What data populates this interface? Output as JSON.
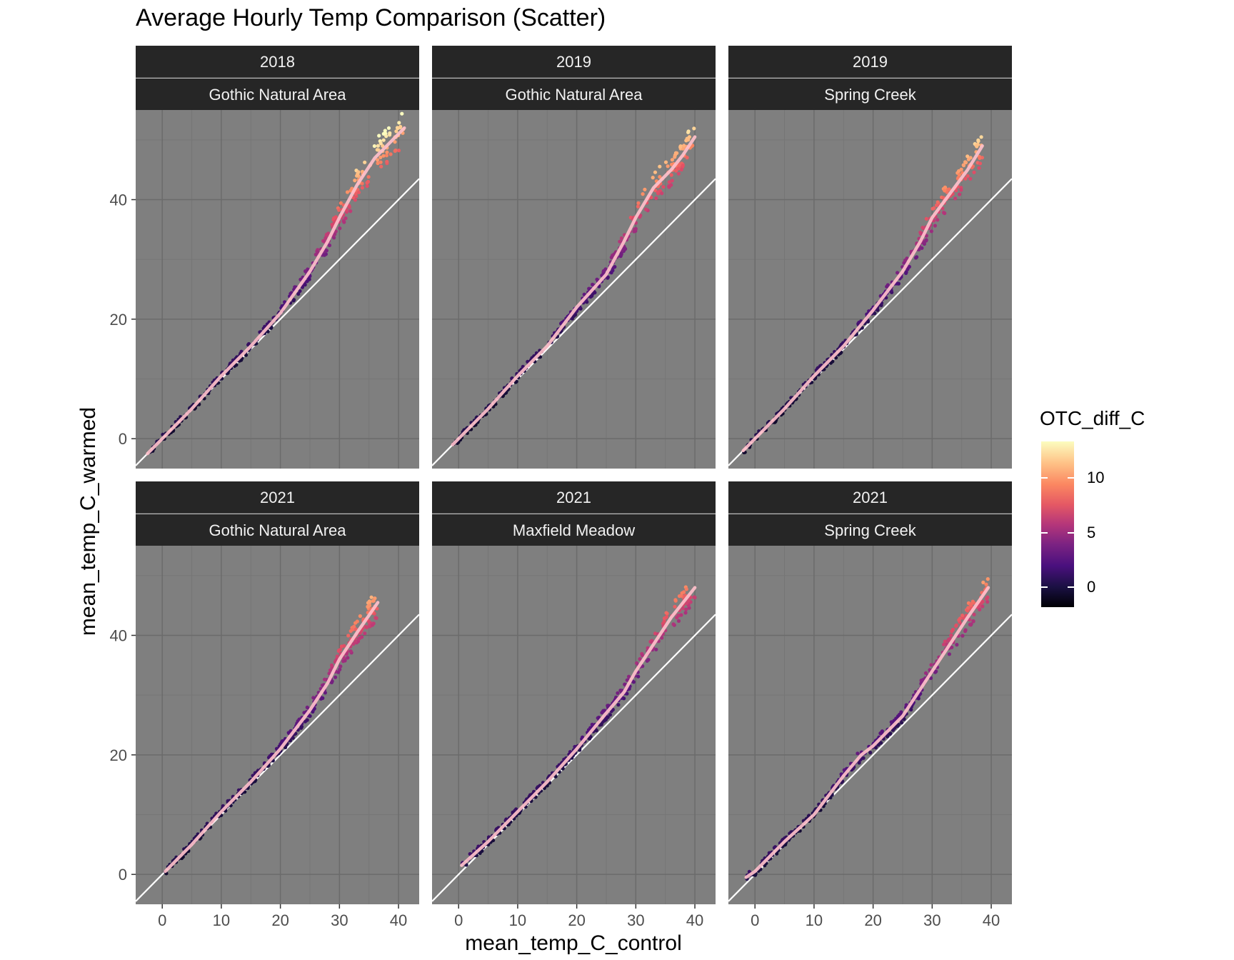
{
  "chart_data": {
    "type": "scatter",
    "title": "Average Hourly Temp Comparison (Scatter)",
    "xlabel": "mean_temp_C_control",
    "ylabel": "mean_temp_C_warmed",
    "xlim": [
      -4.5,
      43.5
    ],
    "ylim": [
      -5,
      55
    ],
    "x_ticks": [
      0,
      10,
      20,
      30,
      40
    ],
    "y_ticks": [
      0,
      20,
      40
    ],
    "grid": true,
    "reference_line": "y = x",
    "legend": {
      "title": "OTC_diff_C",
      "position": "right",
      "scale": "magma",
      "range": [
        -1.8,
        13.3
      ],
      "ticks": [
        0,
        5,
        10
      ]
    },
    "colors": {
      "panel_bg": "#7f7f7f",
      "strip_bg": "#262626",
      "grid_major": "#6b6b6b",
      "grid_minor": "#767676",
      "smooth_line": "#ffc0cb",
      "identity_line": "#ffffff"
    },
    "panels": [
      {
        "year": "2018",
        "site": "Gothic Natural Area",
        "smooth": [
          [
            -2.5,
            -2.5
          ],
          [
            0,
            0
          ],
          [
            5,
            5
          ],
          [
            10,
            10.5
          ],
          [
            15,
            15.5
          ],
          [
            20,
            21
          ],
          [
            25,
            28
          ],
          [
            28,
            33
          ],
          [
            30,
            37
          ],
          [
            33,
            42.5
          ],
          [
            36,
            47
          ],
          [
            39,
            50
          ],
          [
            41,
            52
          ]
        ],
        "diff_range": [
          -1.5,
          13
        ]
      },
      {
        "year": "2019",
        "site": "Gothic Natural Area",
        "smooth": [
          [
            -1,
            -1
          ],
          [
            0,
            0
          ],
          [
            5,
            5
          ],
          [
            10,
            10.5
          ],
          [
            15,
            15.5
          ],
          [
            20,
            22
          ],
          [
            25,
            27.5
          ],
          [
            28,
            33
          ],
          [
            30,
            37
          ],
          [
            33,
            42
          ],
          [
            36,
            45
          ],
          [
            38,
            47.5
          ],
          [
            40,
            50.5
          ]
        ],
        "diff_range": [
          -1,
          12
        ]
      },
      {
        "year": "2019",
        "site": "Spring Creek",
        "smooth": [
          [
            -2,
            -2
          ],
          [
            0,
            0
          ],
          [
            5,
            5
          ],
          [
            10,
            10.5
          ],
          [
            15,
            15.5
          ],
          [
            20,
            21.5
          ],
          [
            25,
            28
          ],
          [
            28,
            33
          ],
          [
            30,
            37
          ],
          [
            33,
            41
          ],
          [
            36,
            45
          ],
          [
            38.5,
            49
          ]
        ],
        "diff_range": [
          -1,
          12.5
        ]
      },
      {
        "year": "2021",
        "site": "Gothic Natural Area",
        "smooth": [
          [
            0.5,
            0.5
          ],
          [
            5,
            5
          ],
          [
            10,
            10.5
          ],
          [
            15,
            15.5
          ],
          [
            20,
            21
          ],
          [
            25,
            27.5
          ],
          [
            28,
            32
          ],
          [
            30,
            36
          ],
          [
            33,
            40.5
          ],
          [
            36.5,
            45.5
          ]
        ],
        "diff_range": [
          -1,
          11
        ]
      },
      {
        "year": "2021",
        "site": "Maxfield Meadow",
        "smooth": [
          [
            0.5,
            1.5
          ],
          [
            5,
            5.5
          ],
          [
            10,
            10.5
          ],
          [
            15,
            15.5
          ],
          [
            20,
            21
          ],
          [
            25,
            27
          ],
          [
            28,
            30.5
          ],
          [
            30,
            34
          ],
          [
            33,
            38.5
          ],
          [
            36,
            43
          ],
          [
            40,
            48
          ]
        ],
        "diff_range": [
          -1,
          10.5
        ]
      },
      {
        "year": "2021",
        "site": "Spring Creek",
        "smooth": [
          [
            -1.5,
            -0.5
          ],
          [
            0,
            0.5
          ],
          [
            5,
            5.5
          ],
          [
            10,
            10
          ],
          [
            15,
            16.5
          ],
          [
            18,
            20
          ],
          [
            20,
            21.5
          ],
          [
            25,
            26.5
          ],
          [
            28,
            31
          ],
          [
            30,
            34
          ],
          [
            33,
            38.5
          ],
          [
            36,
            43
          ],
          [
            39.5,
            48
          ]
        ],
        "diff_range": [
          -1,
          10
        ]
      }
    ]
  }
}
